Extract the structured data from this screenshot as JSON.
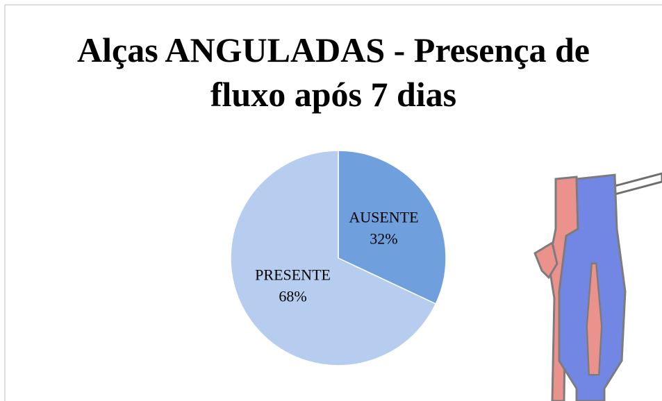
{
  "chart_data": {
    "type": "pie",
    "title": "Alças ANGULADAS - Presença de fluxo após 7 dias",
    "categories": [
      "AUSENTE",
      "PRESENTE"
    ],
    "values": [
      32,
      68
    ],
    "value_labels": [
      "32%",
      "68%"
    ],
    "colors": [
      "#6f9fdd",
      "#b6cdef"
    ]
  }
}
